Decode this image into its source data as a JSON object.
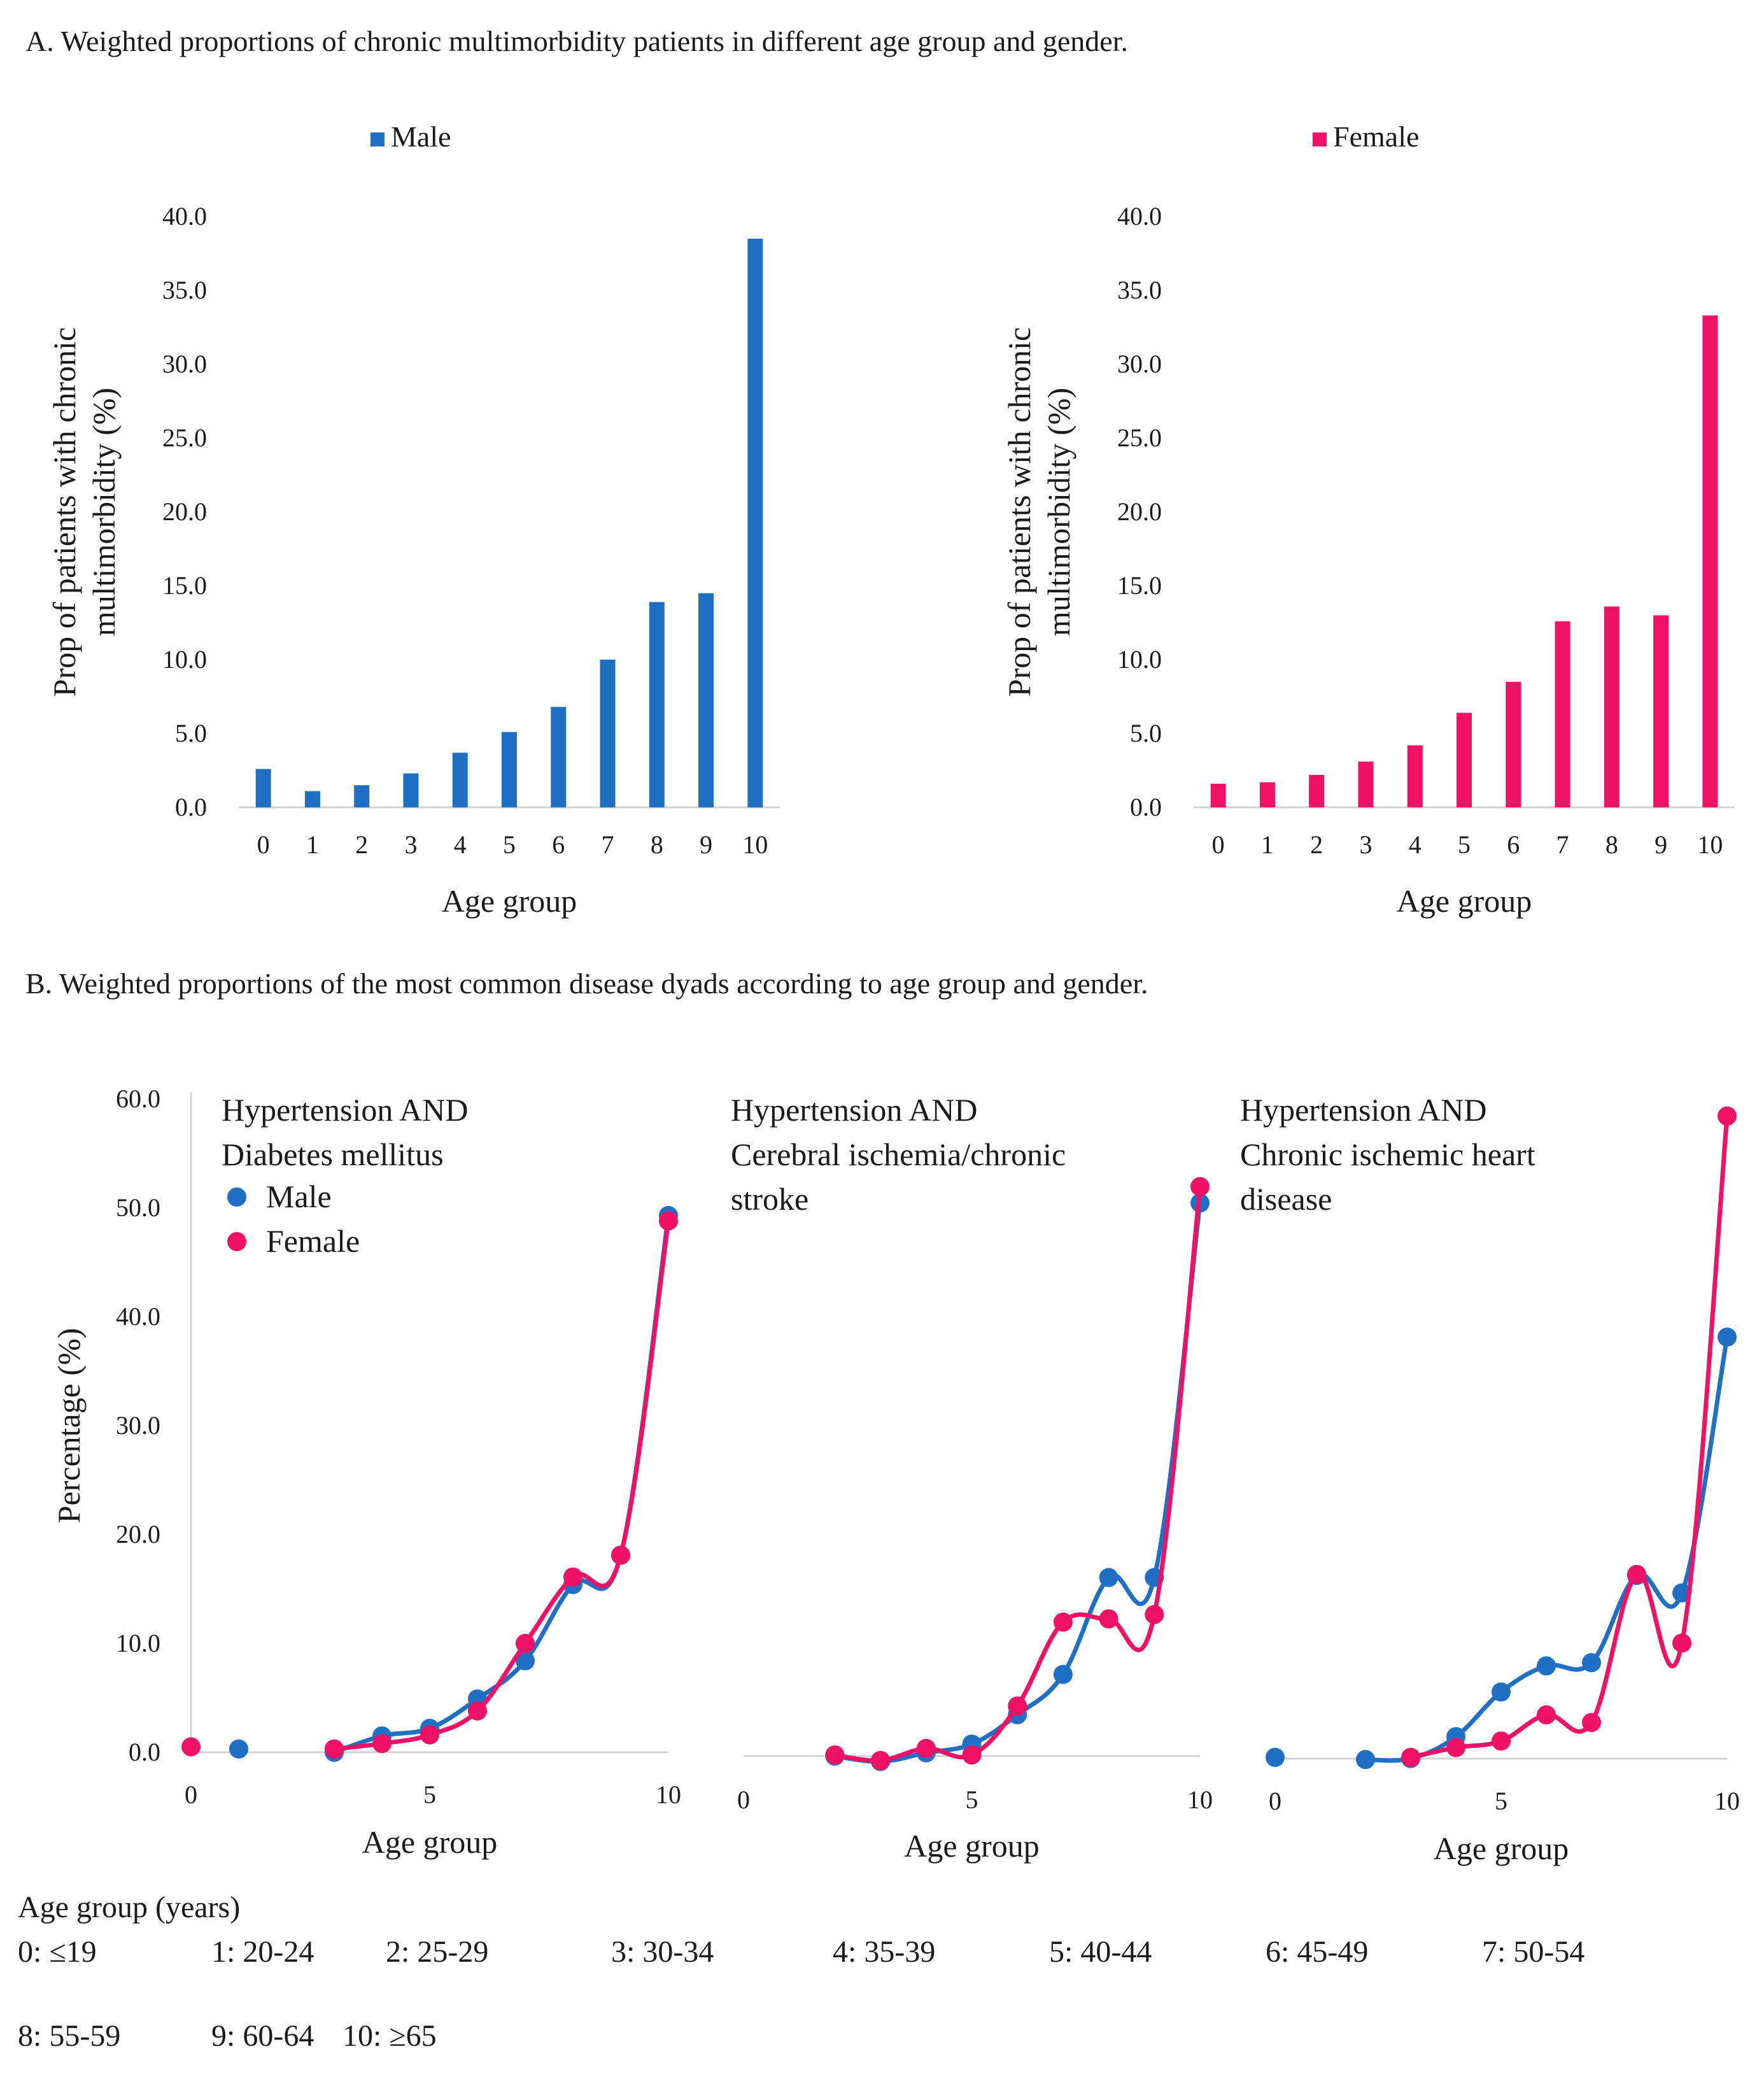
{
  "section_a_title": "A. Weighted proportions of chronic multimorbidity patients in different age group and gender.",
  "section_b_title": "B. Weighted proportions of the most common disease dyads according to age group and gender.",
  "colors": {
    "male": "#1f6fc4",
    "female": "#ee1166",
    "axis": "#d0d0d0"
  },
  "chart_data": [
    {
      "type": "bar",
      "legend": "Male",
      "color": "#1f6fc4",
      "categories": [
        "0",
        "1",
        "2",
        "3",
        "4",
        "5",
        "6",
        "7",
        "8",
        "9",
        "10"
      ],
      "values": [
        2.6,
        1.1,
        1.5,
        2.3,
        3.7,
        5.1,
        6.8,
        10.0,
        13.9,
        14.5,
        38.5
      ],
      "ylabel_lines": [
        "Prop of patients with chronic",
        "multimorbidity (%)"
      ],
      "xlabel": "Age group",
      "yticks": [
        "0.0",
        "5.0",
        "10.0",
        "15.0",
        "20.0",
        "25.0",
        "30.0",
        "35.0",
        "40.0"
      ],
      "ylim": [
        0,
        40
      ]
    },
    {
      "type": "bar",
      "legend": "Female",
      "color": "#ee1166",
      "categories": [
        "0",
        "1",
        "2",
        "3",
        "4",
        "5",
        "6",
        "7",
        "8",
        "9",
        "10"
      ],
      "values": [
        1.6,
        1.7,
        2.2,
        3.1,
        4.2,
        6.4,
        8.5,
        12.6,
        13.6,
        13.0,
        33.3
      ],
      "ylabel_lines": [
        "Prop of patients with chronic",
        "multimorbidity (%)"
      ],
      "xlabel": "Age group",
      "yticks": [
        "0.0",
        "5.0",
        "10.0",
        "15.0",
        "20.0",
        "25.0",
        "30.0",
        "35.0",
        "40.0"
      ],
      "ylim": [
        0,
        40
      ]
    },
    {
      "type": "line",
      "title_lines": [
        "Hypertension AND",
        "Diabetes mellitus"
      ],
      "legend": [
        "Male",
        "Female"
      ],
      "ylabel": "Percentage (%)",
      "xlabel": "Age group",
      "yticks": [
        "0.0",
        "10.0",
        "20.0",
        "30.0",
        "40.0",
        "50.0",
        "60.0"
      ],
      "xticks": [
        "0",
        "5",
        "10"
      ],
      "ylim": [
        0,
        60
      ],
      "xlim": [
        0,
        10
      ],
      "series": [
        {
          "name": "Male",
          "x": [
            1,
            3,
            4,
            5,
            6,
            7,
            8,
            9,
            10
          ],
          "y": [
            0.3,
            0.0,
            1.5,
            2.2,
            4.9,
            8.4,
            15.4,
            18.1,
            49.3
          ],
          "connect_from": 3
        },
        {
          "name": "Female",
          "x": [
            0,
            3,
            4,
            5,
            6,
            7,
            8,
            9,
            10
          ],
          "y": [
            0.5,
            0.3,
            0.8,
            1.6,
            3.8,
            10.0,
            16.1,
            18.1,
            48.8
          ],
          "connect_from": 3
        }
      ]
    },
    {
      "type": "line",
      "title_lines": [
        "Hypertension AND",
        "Cerebral ischemia/chronic",
        "stroke"
      ],
      "xlabel": "Age group",
      "xticks": [
        "0",
        "5",
        "10"
      ],
      "ylim": [
        0,
        60
      ],
      "xlim": [
        0,
        10
      ],
      "series": [
        {
          "name": "Male",
          "x": [
            2,
            3,
            4,
            5,
            6,
            7,
            8,
            9,
            10
          ],
          "y": [
            0.0,
            -0.5,
            0.3,
            1.1,
            3.8,
            7.5,
            16.4,
            16.4,
            50.8
          ],
          "connect_from": 2
        },
        {
          "name": "Female",
          "x": [
            2,
            3,
            4,
            5,
            6,
            7,
            8,
            9,
            10
          ],
          "y": [
            0.1,
            -0.4,
            0.7,
            0.1,
            4.6,
            12.3,
            12.6,
            13.0,
            52.3
          ],
          "connect_from": 2
        }
      ]
    },
    {
      "type": "line",
      "title_lines": [
        "Hypertension AND",
        "Chronic ischemic heart",
        "disease"
      ],
      "xlabel": "Age group",
      "xticks": [
        "0",
        "5",
        "10"
      ],
      "ylim": [
        0,
        60
      ],
      "xlim": [
        0,
        10
      ],
      "series": [
        {
          "name": "Male",
          "x": [
            0,
            2,
            3,
            4,
            5,
            6,
            7,
            8,
            9,
            10
          ],
          "y": [
            0.0,
            -0.2,
            -0.1,
            1.9,
            6.0,
            8.4,
            8.7,
            16.7,
            15.1,
            38.6
          ],
          "connect_from": 2
        },
        {
          "name": "Female",
          "x": [
            3,
            4,
            5,
            6,
            7,
            8,
            9,
            10
          ],
          "y": [
            0.0,
            0.9,
            1.5,
            3.9,
            3.2,
            16.8,
            10.5,
            58.9
          ],
          "connect_from": 3
        }
      ]
    }
  ],
  "footer": {
    "heading": "Age group (years)",
    "groups": [
      "0: ≤19",
      "1: 20-24",
      "2: 25-29",
      "3: 30-34",
      "4: 35-39",
      "5: 40-44",
      "6: 45-49",
      "7: 50-54",
      "8: 55-59",
      "9: 60-64",
      "10: ≥65"
    ]
  }
}
